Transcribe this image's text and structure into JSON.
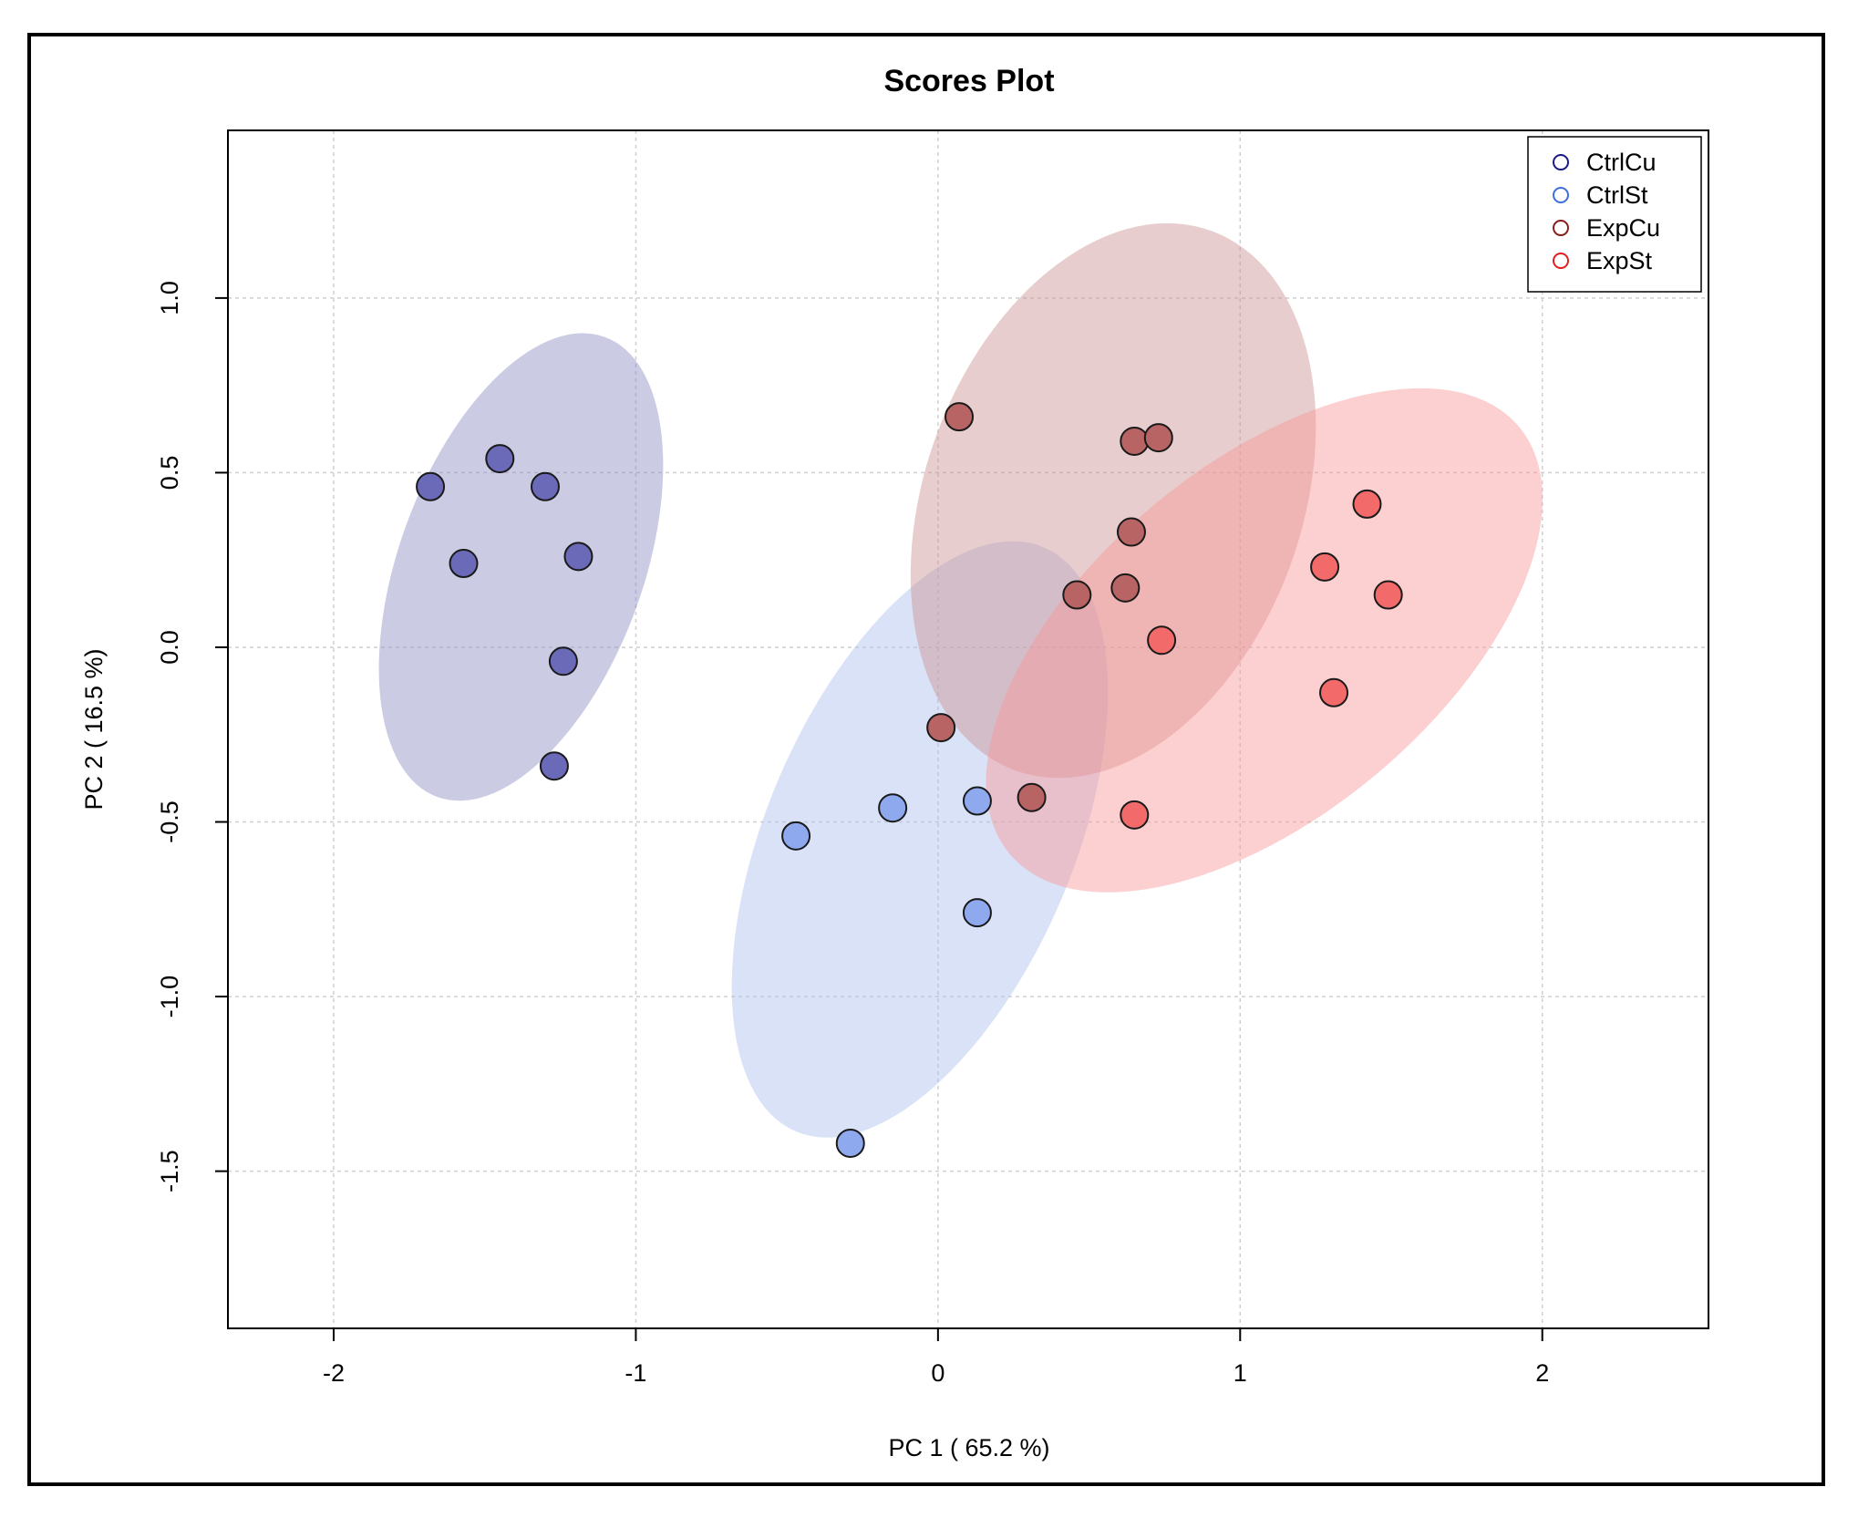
{
  "chart_data": {
    "type": "scatter",
    "title": "Scores Plot",
    "xlabel": "PC 1 ( 65.2 %)",
    "ylabel": "PC 2 ( 16.5 %)",
    "xlim": [
      -2.35,
      2.55
    ],
    "ylim": [
      -1.95,
      1.48
    ],
    "xticks": [
      -2,
      -1,
      0,
      1,
      2
    ],
    "xtick_labels": [
      "-2",
      "-1",
      "0",
      "1",
      "2"
    ],
    "yticks": [
      -1.5,
      -1.0,
      -0.5,
      0.0,
      0.5,
      1.0
    ],
    "ytick_labels": [
      "-1.5",
      "-1.0",
      "-0.5",
      "0.0",
      "0.5",
      "1.0"
    ],
    "grid": true,
    "legend_position": "top-right",
    "series": [
      {
        "name": "CtrlCu",
        "color": "#1a1a8c",
        "fill": "#6a6ab8",
        "ellipse_fill": "#8c8cc4",
        "ellipse": {
          "cx": -1.38,
          "cy": 0.23,
          "rx": 0.81,
          "ry": 0.35,
          "angle": 70
        },
        "points": [
          {
            "x": -1.68,
            "y": 0.46
          },
          {
            "x": -1.45,
            "y": 0.54
          },
          {
            "x": -1.3,
            "y": 0.46
          },
          {
            "x": -1.57,
            "y": 0.24
          },
          {
            "x": -1.19,
            "y": 0.26
          },
          {
            "x": -1.24,
            "y": -0.04
          },
          {
            "x": -1.27,
            "y": -0.34
          }
        ]
      },
      {
        "name": "CtrlSt",
        "color": "#3d6ee0",
        "fill": "#8fa9ee",
        "ellipse_fill": "#aebff0",
        "ellipse": {
          "cx": -0.06,
          "cy": -0.55,
          "rx": 1.05,
          "ry": 0.44,
          "angle": 67
        },
        "points": [
          {
            "x": -0.47,
            "y": -0.54
          },
          {
            "x": -0.15,
            "y": -0.46
          },
          {
            "x": 0.13,
            "y": -0.44
          },
          {
            "x": 0.13,
            "y": -0.76
          },
          {
            "x": -0.29,
            "y": -1.42
          }
        ]
      },
      {
        "name": "ExpCu",
        "color": "#8b1a1a",
        "fill": "#b86464",
        "ellipse_fill": "#c99090",
        "ellipse": {
          "cx": 0.58,
          "cy": 0.42,
          "rx": 0.95,
          "ry": 0.54,
          "angle": 70
        },
        "points": [
          {
            "x": 0.07,
            "y": 0.66
          },
          {
            "x": 0.65,
            "y": 0.59
          },
          {
            "x": 0.73,
            "y": 0.6
          },
          {
            "x": 0.64,
            "y": 0.33
          },
          {
            "x": 0.46,
            "y": 0.15
          },
          {
            "x": 0.62,
            "y": 0.17
          },
          {
            "x": 0.01,
            "y": -0.23
          },
          {
            "x": 0.31,
            "y": -0.43
          }
        ]
      },
      {
        "name": "ExpSt",
        "color": "#e02020",
        "fill": "#f36a6a",
        "ellipse_fill": "#f89696",
        "ellipse": {
          "cx": 1.08,
          "cy": 0.02,
          "rx": 1.1,
          "ry": 0.5,
          "angle": 40
        },
        "points": [
          {
            "x": 1.42,
            "y": 0.41
          },
          {
            "x": 1.28,
            "y": 0.23
          },
          {
            "x": 1.49,
            "y": 0.15
          },
          {
            "x": 0.74,
            "y": 0.02
          },
          {
            "x": 1.31,
            "y": -0.13
          },
          {
            "x": 0.65,
            "y": -0.48
          }
        ]
      }
    ]
  }
}
